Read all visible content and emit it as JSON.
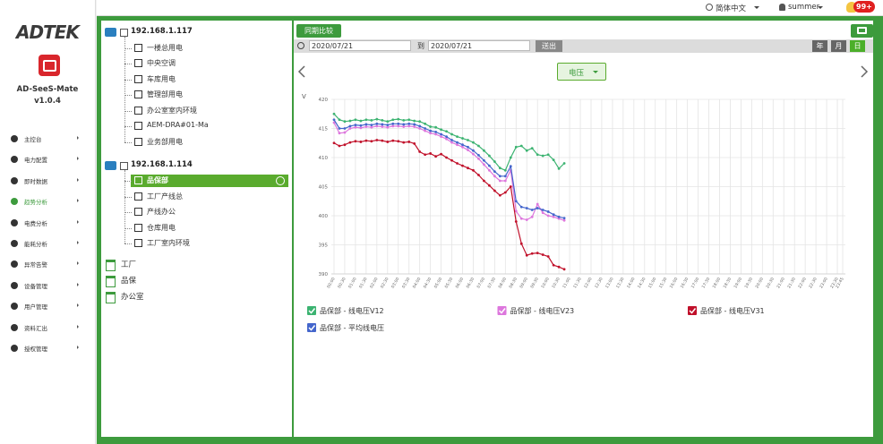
{
  "sidebar": {
    "logo": "ADTEK",
    "app_name": "AD-SeeS-Mate",
    "version": "v1.0.4",
    "menu": [
      {
        "label": "主控台"
      },
      {
        "label": "电力配置"
      },
      {
        "label": "即时数据"
      },
      {
        "label": "趋势分析",
        "active": true
      },
      {
        "label": "电费分析"
      },
      {
        "label": "能耗分析"
      },
      {
        "label": "异常告警"
      },
      {
        "label": "设备管理"
      },
      {
        "label": "用户管理"
      },
      {
        "label": "资料汇出"
      },
      {
        "label": "授权管理"
      }
    ]
  },
  "topbar": {
    "language": "简体中文",
    "user": "summer",
    "notifications": "99+"
  },
  "tree": {
    "devices": [
      {
        "ip": "192.168.1.117",
        "items": [
          {
            "label": "一楼总用电"
          },
          {
            "label": "中央空调"
          },
          {
            "label": "车库用电"
          },
          {
            "label": "管理部用电"
          },
          {
            "label": "办公室室内环境"
          },
          {
            "label": "AEM-DRA#01-Ma"
          },
          {
            "label": "业务部用电"
          }
        ]
      },
      {
        "ip": "192.168.1.114",
        "items": [
          {
            "label": "品保部",
            "selected": true
          },
          {
            "label": "工厂产线总"
          },
          {
            "label": "产线办公"
          },
          {
            "label": "仓库用电"
          },
          {
            "label": "工厂室内环境"
          }
        ]
      }
    ],
    "groups": [
      "工厂",
      "品保",
      "办公室"
    ]
  },
  "toolbar": {
    "compare": "同期比较",
    "start_date": "2020/07/21",
    "to": "到",
    "end_date": "2020/07/21",
    "submit": "送出",
    "periods": [
      {
        "label": "年"
      },
      {
        "label": "月"
      },
      {
        "label": "日",
        "active": true
      }
    ]
  },
  "metric": "电压",
  "chart_data": {
    "type": "line",
    "ylabel": "V",
    "categories": [
      "00:00",
      null,
      "00:30",
      null,
      "01:00",
      null,
      "01:30",
      null,
      "02:00",
      null,
      "02:30",
      null,
      "03:00",
      null,
      "03:30",
      null,
      "04:00",
      null,
      "04:30",
      null,
      "05:00",
      null,
      "05:30",
      null,
      "06:00",
      null,
      "06:30",
      null,
      "07:00",
      null,
      "07:30",
      null,
      "08:00",
      null,
      "08:30",
      null,
      "09:00",
      null,
      "09:30",
      null,
      "10:00",
      null,
      "10:30",
      null,
      "11:00",
      null,
      "11:30",
      null,
      "12:00",
      null,
      "12:30",
      null,
      "13:00",
      null,
      "13:30",
      null,
      "14:00",
      null,
      "14:30",
      null,
      "15:00",
      null,
      "15:30",
      null,
      "16:00",
      null,
      "16:30",
      null,
      "17:00",
      null,
      "17:30",
      null,
      "18:00",
      null,
      "18:30",
      null,
      "19:00",
      null,
      "19:30",
      null,
      "20:00",
      null,
      "20:30",
      null,
      "21:00",
      null,
      "21:30",
      null,
      "22:00",
      null,
      "22:30",
      null,
      "23:00",
      null,
      "23:30",
      "23:45"
    ],
    "series": [
      {
        "name": "品保部 - 线电压V12",
        "color": "#3cb371",
        "values": [
          417.5,
          416.5,
          416.2,
          416.3,
          416.5,
          416.3,
          416.5,
          416.4,
          416.6,
          416.4,
          416.2,
          416.5,
          416.6,
          416.4,
          416.5,
          416.3,
          416.2,
          415.8,
          415.3,
          415.2,
          414.8,
          414.5,
          414.0,
          413.6,
          413.3,
          413.0,
          412.6,
          412.0,
          411.2,
          410.3,
          409.3,
          408.2,
          407.8,
          410.0,
          411.8,
          412.0,
          411.2,
          411.6,
          410.5,
          410.3,
          410.5,
          409.6,
          408.1,
          409.0,
          null,
          null,
          null,
          null,
          null,
          null,
          null,
          null,
          null,
          null,
          null,
          null,
          null,
          null,
          null,
          null,
          null,
          null,
          null,
          null,
          null,
          null,
          null,
          null,
          null,
          null,
          null,
          null,
          null,
          null,
          null,
          null,
          null,
          null,
          null,
          null,
          null,
          null,
          null,
          null,
          null,
          null,
          null,
          null,
          null,
          null,
          null,
          null,
          null,
          null,
          null,
          null
        ]
      },
      {
        "name": "品保部 - 线电压V23",
        "color": "#dd77dd",
        "values": [
          416.0,
          414.2,
          414.3,
          415.0,
          415.2,
          415.1,
          415.3,
          415.2,
          415.4,
          415.3,
          415.2,
          415.4,
          415.4,
          415.3,
          415.4,
          415.3,
          415.0,
          414.6,
          414.2,
          414.0,
          413.6,
          413.2,
          412.6,
          412.2,
          411.8,
          411.3,
          410.6,
          409.8,
          408.8,
          407.8,
          406.8,
          406.0,
          406.0,
          407.8,
          400.8,
          399.5,
          399.3,
          399.8,
          402.0,
          400.5,
          400.0,
          399.8,
          399.5,
          399.2,
          null,
          null,
          null,
          null,
          null,
          null,
          null,
          null,
          null,
          null,
          null,
          null,
          null,
          null,
          null,
          null,
          null,
          null,
          null,
          null,
          null,
          null,
          null,
          null,
          null,
          null,
          null,
          null,
          null,
          null,
          null,
          null,
          null,
          null,
          null,
          null,
          null,
          null,
          null,
          null,
          null,
          null,
          null,
          null,
          null,
          null,
          null,
          null,
          null,
          null,
          null,
          null
        ]
      },
      {
        "name": "品保部 - 线电压V31",
        "color": "#c0102a",
        "values": [
          412.5,
          412.0,
          412.2,
          412.6,
          412.8,
          412.7,
          412.9,
          412.8,
          413.0,
          412.9,
          412.7,
          412.9,
          412.8,
          412.6,
          412.7,
          412.4,
          411.0,
          410.5,
          410.7,
          410.2,
          410.6,
          410.0,
          409.5,
          409.0,
          408.6,
          408.2,
          407.8,
          407.0,
          406.0,
          405.2,
          404.3,
          403.5,
          404.0,
          405.0,
          399.0,
          395.2,
          393.2,
          393.5,
          393.6,
          393.3,
          393.0,
          391.5,
          391.2,
          390.8,
          null,
          null,
          null,
          null,
          null,
          null,
          null,
          null,
          null,
          null,
          null,
          null,
          null,
          null,
          null,
          null,
          null,
          null,
          null,
          null,
          null,
          null,
          null,
          null,
          null,
          null,
          null,
          null,
          null,
          null,
          null,
          null,
          null,
          null,
          null,
          null,
          null,
          null,
          null,
          null,
          null,
          null,
          null,
          null,
          null,
          null,
          null,
          null,
          null,
          null,
          null,
          null
        ]
      },
      {
        "name": "品保部 - 平均线电压",
        "color": "#4466cc",
        "values": [
          416.5,
          415.0,
          415.0,
          415.4,
          415.6,
          415.5,
          415.7,
          415.6,
          415.8,
          415.7,
          415.6,
          415.8,
          415.8,
          415.7,
          415.8,
          415.7,
          415.4,
          415.0,
          414.6,
          414.4,
          414.0,
          413.6,
          413.0,
          412.6,
          412.2,
          411.8,
          411.2,
          410.4,
          409.5,
          408.6,
          407.6,
          406.8,
          406.8,
          408.5,
          402.5,
          401.5,
          401.3,
          401.0,
          401.3,
          401.0,
          400.7,
          400.2,
          399.8,
          399.6,
          null,
          null,
          null,
          null,
          null,
          null,
          null,
          null,
          null,
          null,
          null,
          null,
          null,
          null,
          null,
          null,
          null,
          null,
          null,
          null,
          null,
          null,
          null,
          null,
          null,
          null,
          null,
          null,
          null,
          null,
          null,
          null,
          null,
          null,
          null,
          null,
          null,
          null,
          null,
          null,
          null,
          null,
          null,
          null,
          null,
          null,
          null,
          null,
          null,
          null,
          null,
          null
        ]
      }
    ],
    "ylim": [
      390,
      420
    ],
    "yticks": [
      390,
      395,
      400,
      405,
      410,
      415,
      420
    ],
    "grid": true
  }
}
